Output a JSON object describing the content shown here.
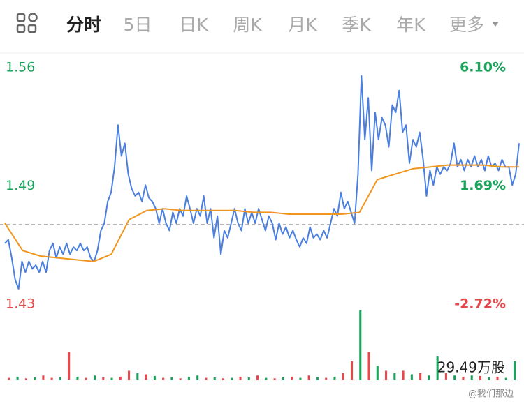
{
  "tabs": [
    "分时",
    "5日",
    "日K",
    "周K",
    "月K",
    "季K",
    "年K",
    "更多"
  ],
  "chart_data": {
    "type": "intraday",
    "prev_close": 1.4703,
    "ylim": [
      1.43,
      1.56
    ],
    "yticks": [
      1.56,
      {
        "value": 1.495,
        "label": "1.49"
      },
      1.43
    ],
    "y2lim": [
      -2.72,
      6.1
    ],
    "y2ticks": [
      {
        "value": 6.1,
        "label": "6.10%"
      },
      {
        "value": 1.69,
        "label": "1.69%"
      },
      {
        "value": -2.72,
        "label": "-2.72%"
      }
    ],
    "up_color": "#1aa35a",
    "down_color": "#e8474c",
    "series": [
      {
        "color": "#4a7fe0",
        "values": [
          1.46,
          1.462,
          1.452,
          1.44,
          1.435,
          1.45,
          1.444,
          1.45,
          1.446,
          1.448,
          1.444,
          1.45,
          1.444,
          1.456,
          1.46,
          1.452,
          1.458,
          1.454,
          1.46,
          1.454,
          1.458,
          1.456,
          1.46,
          1.456,
          1.458,
          1.452,
          1.45,
          1.456,
          1.467,
          1.471,
          1.483,
          1.488,
          1.502,
          1.525,
          1.508,
          1.515,
          1.498,
          1.49,
          1.486,
          1.488,
          1.483,
          1.492,
          1.485,
          1.483,
          1.479,
          1.471,
          1.479,
          1.471,
          1.467,
          1.477,
          1.471,
          1.479,
          1.475,
          1.486,
          1.479,
          1.471,
          1.479,
          1.475,
          1.486,
          1.471,
          1.479,
          1.463,
          1.475,
          1.454,
          1.467,
          1.463,
          1.471,
          1.479,
          1.471,
          1.467,
          1.479,
          1.471,
          1.477,
          1.471,
          1.479,
          1.473,
          1.467,
          1.475,
          1.471,
          1.462,
          1.471,
          1.465,
          1.469,
          1.463,
          1.467,
          1.462,
          1.458,
          1.463,
          1.46,
          1.469,
          1.463,
          1.465,
          1.462,
          1.467,
          1.463,
          1.471,
          1.479,
          1.475,
          1.488,
          1.479,
          1.483,
          1.477,
          1.471,
          1.498,
          1.552,
          1.517,
          1.54,
          1.5,
          1.532,
          1.517,
          1.529,
          1.525,
          1.513,
          1.536,
          1.532,
          1.544,
          1.521,
          1.525,
          1.504,
          1.517,
          1.513,
          1.521,
          1.506,
          1.486,
          1.5,
          1.492,
          1.502,
          1.498,
          1.502,
          1.5,
          1.504,
          1.515,
          1.502,
          1.506,
          1.5,
          1.506,
          1.502,
          1.508,
          1.502,
          1.506,
          1.5,
          1.508,
          1.502,
          1.504,
          1.5,
          1.506,
          1.502,
          1.502,
          1.492,
          1.498,
          1.515
        ]
      },
      {
        "color": "#f0961e",
        "values": [
          1.471,
          1.456,
          1.453,
          1.452,
          1.451,
          1.45,
          1.454,
          1.473,
          1.478,
          1.479,
          1.478,
          1.478,
          1.478,
          1.478,
          1.477,
          1.477,
          1.476,
          1.476,
          1.476,
          1.476,
          1.477,
          1.495,
          1.498,
          1.501,
          1.502,
          1.503,
          1.503,
          1.503,
          1.502,
          1.502
        ]
      }
    ],
    "volume": {
      "label": "29.49万股",
      "ylim": [
        0,
        29.49
      ],
      "values": [
        1,
        1.5,
        0.8,
        1.2,
        2,
        1,
        1.3,
        12,
        1.5,
        1,
        2,
        1.2,
        1,
        1.5,
        4,
        3,
        2.5,
        1.8,
        1,
        1.2,
        0.8,
        1.5,
        2,
        1,
        1.2,
        0.8,
        1,
        1.5,
        1.2,
        2,
        1,
        0.8,
        1.2,
        1.5,
        1,
        2,
        1.3,
        1,
        1.5,
        3,
        8,
        29.49,
        12,
        6,
        4,
        3,
        4,
        2.5,
        3,
        2,
        10,
        3,
        2,
        1.5,
        2,
        1.8,
        1.2,
        1.5,
        1,
        8
      ],
      "colors": [
        "#e8474c",
        "#1aa35a",
        "#e8474c",
        "#1aa35a",
        "#e8474c",
        "#e8474c",
        "#1aa35a",
        "#e8474c",
        "#1aa35a",
        "#e8474c",
        "#1aa35a",
        "#e8474c",
        "#1aa35a",
        "#e8474c",
        "#e8474c",
        "#1aa35a",
        "#e8474c",
        "#1aa35a",
        "#e8474c",
        "#1aa35a",
        "#e8474c",
        "#1aa35a",
        "#1aa35a",
        "#e8474c",
        "#1aa35a",
        "#e8474c",
        "#1aa35a",
        "#e8474c",
        "#1aa35a",
        "#e8474c",
        "#1aa35a",
        "#e8474c",
        "#1aa35a",
        "#e8474c",
        "#1aa35a",
        "#e8474c",
        "#1aa35a",
        "#e8474c",
        "#1aa35a",
        "#e8474c",
        "#e8474c",
        "#1aa35a",
        "#e8474c",
        "#1aa35a",
        "#e8474c",
        "#1aa35a",
        "#e8474c",
        "#1aa35a",
        "#e8474c",
        "#1aa35a",
        "#1aa35a",
        "#e8474c",
        "#1aa35a",
        "#e8474c",
        "#1aa35a",
        "#e8474c",
        "#1aa35a",
        "#e8474c",
        "#1aa35a",
        "#1aa35a"
      ]
    }
  },
  "watermark": "@我们那边"
}
